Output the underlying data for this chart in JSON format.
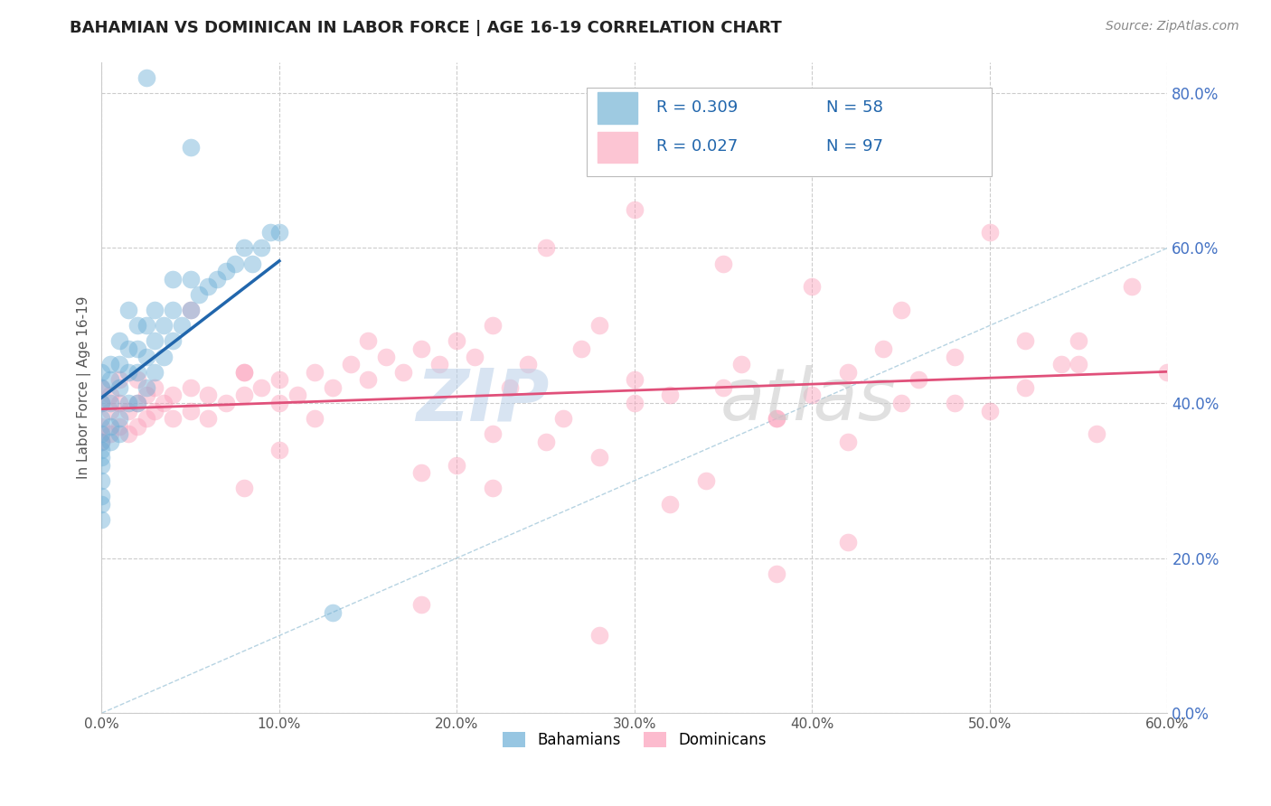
{
  "title": "BAHAMIAN VS DOMINICAN IN LABOR FORCE | AGE 16-19 CORRELATION CHART",
  "source_text": "Source: ZipAtlas.com",
  "ylabel": "In Labor Force | Age 16-19",
  "xlim": [
    0.0,
    0.6
  ],
  "ylim": [
    0.0,
    0.84
  ],
  "xticks": [
    0.0,
    0.1,
    0.2,
    0.3,
    0.4,
    0.5,
    0.6
  ],
  "xtick_labels": [
    "0.0%",
    "10.0%",
    "20.0%",
    "30.0%",
    "40.0%",
    "50.0%",
    "60.0%"
  ],
  "yticks": [
    0.0,
    0.2,
    0.4,
    0.6,
    0.8
  ],
  "ytick_labels": [
    "0.0%",
    "20.0%",
    "40.0%",
    "60.0%",
    "80.0%"
  ],
  "blue_color": "#6baed6",
  "pink_color": "#fc9fba",
  "legend_r_blue": "R = 0.309",
  "legend_n_blue": "N = 58",
  "legend_r_pink": "R = 0.027",
  "legend_n_pink": "N = 97",
  "watermark_zip": "ZIP",
  "watermark_atlas": "atlas",
  "regression_line_blue": "#2166ac",
  "regression_line_pink": "#e0507a",
  "diagonal_color": "#aaccdd",
  "bah_x": [
    0.0,
    0.0,
    0.0,
    0.0,
    0.0,
    0.0,
    0.0,
    0.0,
    0.0,
    0.0,
    0.0,
    0.0,
    0.0,
    0.005,
    0.005,
    0.005,
    0.005,
    0.005,
    0.01,
    0.01,
    0.01,
    0.01,
    0.01,
    0.015,
    0.015,
    0.015,
    0.015,
    0.02,
    0.02,
    0.02,
    0.02,
    0.025,
    0.025,
    0.025,
    0.03,
    0.03,
    0.03,
    0.035,
    0.035,
    0.04,
    0.04,
    0.04,
    0.045,
    0.05,
    0.05,
    0.055,
    0.06,
    0.065,
    0.07,
    0.075,
    0.08,
    0.085,
    0.09,
    0.095,
    0.1,
    0.025,
    0.05,
    0.13
  ],
  "bah_y": [
    0.35,
    0.38,
    0.4,
    0.42,
    0.44,
    0.3,
    0.32,
    0.28,
    0.36,
    0.34,
    0.25,
    0.27,
    0.33,
    0.37,
    0.4,
    0.43,
    0.45,
    0.35,
    0.38,
    0.42,
    0.45,
    0.48,
    0.36,
    0.4,
    0.44,
    0.47,
    0.52,
    0.4,
    0.44,
    0.47,
    0.5,
    0.42,
    0.46,
    0.5,
    0.44,
    0.48,
    0.52,
    0.46,
    0.5,
    0.48,
    0.52,
    0.56,
    0.5,
    0.52,
    0.56,
    0.54,
    0.55,
    0.56,
    0.57,
    0.58,
    0.6,
    0.58,
    0.6,
    0.62,
    0.62,
    0.82,
    0.73,
    0.13
  ],
  "dom_x": [
    0.0,
    0.0,
    0.0,
    0.0,
    0.005,
    0.005,
    0.005,
    0.01,
    0.01,
    0.01,
    0.015,
    0.015,
    0.02,
    0.02,
    0.02,
    0.025,
    0.025,
    0.03,
    0.03,
    0.035,
    0.04,
    0.04,
    0.05,
    0.05,
    0.06,
    0.06,
    0.07,
    0.08,
    0.08,
    0.09,
    0.1,
    0.1,
    0.11,
    0.12,
    0.13,
    0.14,
    0.15,
    0.16,
    0.17,
    0.18,
    0.19,
    0.2,
    0.21,
    0.22,
    0.23,
    0.24,
    0.25,
    0.26,
    0.27,
    0.28,
    0.3,
    0.3,
    0.32,
    0.34,
    0.35,
    0.36,
    0.38,
    0.4,
    0.42,
    0.44,
    0.45,
    0.46,
    0.48,
    0.5,
    0.52,
    0.54,
    0.55,
    0.56,
    0.58,
    0.6,
    0.05,
    0.12,
    0.08,
    0.15,
    0.25,
    0.3,
    0.4,
    0.5,
    0.08,
    0.2,
    0.35,
    0.45,
    0.55,
    0.1,
    0.22,
    0.38,
    0.48,
    0.28,
    0.18,
    0.42,
    0.52,
    0.32,
    0.22,
    0.42,
    0.38,
    0.28,
    0.18
  ],
  "dom_y": [
    0.37,
    0.4,
    0.42,
    0.35,
    0.36,
    0.39,
    0.41,
    0.37,
    0.4,
    0.43,
    0.36,
    0.39,
    0.37,
    0.4,
    0.43,
    0.38,
    0.41,
    0.39,
    0.42,
    0.4,
    0.38,
    0.41,
    0.39,
    0.42,
    0.38,
    0.41,
    0.4,
    0.41,
    0.44,
    0.42,
    0.4,
    0.43,
    0.41,
    0.44,
    0.42,
    0.45,
    0.43,
    0.46,
    0.44,
    0.47,
    0.45,
    0.48,
    0.46,
    0.5,
    0.42,
    0.45,
    0.35,
    0.38,
    0.47,
    0.5,
    0.4,
    0.43,
    0.41,
    0.3,
    0.42,
    0.45,
    0.38,
    0.41,
    0.44,
    0.47,
    0.4,
    0.43,
    0.46,
    0.39,
    0.42,
    0.45,
    0.48,
    0.36,
    0.55,
    0.44,
    0.52,
    0.38,
    0.44,
    0.48,
    0.6,
    0.65,
    0.55,
    0.62,
    0.29,
    0.32,
    0.58,
    0.52,
    0.45,
    0.34,
    0.36,
    0.38,
    0.4,
    0.33,
    0.31,
    0.35,
    0.48,
    0.27,
    0.29,
    0.22,
    0.18,
    0.1,
    0.14
  ]
}
